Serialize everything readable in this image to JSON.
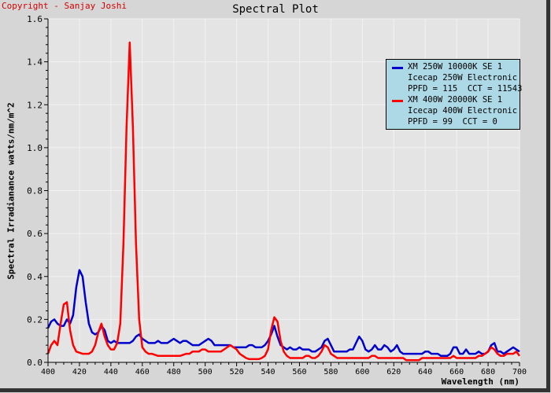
{
  "header": {
    "copyright": "Copyright - Sanjay Joshi"
  },
  "chart_data": {
    "type": "line",
    "title": "Spectral Plot",
    "xlabel": "Wavelength (nm)",
    "ylabel": "Spectral Irradianance watts/nm/m^2",
    "xlim": [
      400,
      700
    ],
    "ylim": [
      0,
      1.6
    ],
    "x_ticks": [
      "400",
      "420",
      "440",
      "460",
      "480",
      "500",
      "520",
      "540",
      "560",
      "580",
      "600",
      "620",
      "640",
      "660",
      "680",
      "700"
    ],
    "y_ticks": [
      "0.0",
      "0.2",
      "0.4",
      "0.6",
      "0.8",
      "1.0",
      "1.2",
      "1.4",
      "1.6"
    ],
    "grid": true,
    "legend_position": "top-right",
    "series": [
      {
        "name": "XM 250W 10000K SE 1",
        "legend_lines": [
          "XM 250W 10000K SE 1",
          "Icecap 250W Electronic",
          "PPFD = 115  CCT = 11543"
        ],
        "color": "#0000cc",
        "points": [
          [
            400,
            0.16
          ],
          [
            402,
            0.19
          ],
          [
            404,
            0.2
          ],
          [
            406,
            0.18
          ],
          [
            408,
            0.17
          ],
          [
            410,
            0.17
          ],
          [
            412,
            0.2
          ],
          [
            414,
            0.18
          ],
          [
            416,
            0.22
          ],
          [
            418,
            0.35
          ],
          [
            420,
            0.43
          ],
          [
            422,
            0.4
          ],
          [
            424,
            0.28
          ],
          [
            426,
            0.18
          ],
          [
            428,
            0.14
          ],
          [
            430,
            0.13
          ],
          [
            432,
            0.14
          ],
          [
            434,
            0.17
          ],
          [
            436,
            0.15
          ],
          [
            438,
            0.1
          ],
          [
            440,
            0.09
          ],
          [
            442,
            0.1
          ],
          [
            444,
            0.09
          ],
          [
            446,
            0.09
          ],
          [
            448,
            0.09
          ],
          [
            450,
            0.09
          ],
          [
            452,
            0.09
          ],
          [
            454,
            0.1
          ],
          [
            456,
            0.12
          ],
          [
            458,
            0.13
          ],
          [
            460,
            0.11
          ],
          [
            462,
            0.1
          ],
          [
            464,
            0.09
          ],
          [
            466,
            0.09
          ],
          [
            468,
            0.09
          ],
          [
            470,
            0.1
          ],
          [
            472,
            0.09
          ],
          [
            474,
            0.09
          ],
          [
            476,
            0.09
          ],
          [
            478,
            0.1
          ],
          [
            480,
            0.11
          ],
          [
            482,
            0.1
          ],
          [
            484,
            0.09
          ],
          [
            486,
            0.1
          ],
          [
            488,
            0.1
          ],
          [
            490,
            0.09
          ],
          [
            492,
            0.08
          ],
          [
            494,
            0.08
          ],
          [
            496,
            0.08
          ],
          [
            498,
            0.09
          ],
          [
            500,
            0.1
          ],
          [
            502,
            0.11
          ],
          [
            504,
            0.1
          ],
          [
            506,
            0.08
          ],
          [
            508,
            0.08
          ],
          [
            510,
            0.08
          ],
          [
            512,
            0.08
          ],
          [
            514,
            0.08
          ],
          [
            516,
            0.08
          ],
          [
            518,
            0.07
          ],
          [
            520,
            0.07
          ],
          [
            522,
            0.07
          ],
          [
            524,
            0.07
          ],
          [
            526,
            0.07
          ],
          [
            528,
            0.08
          ],
          [
            530,
            0.08
          ],
          [
            532,
            0.07
          ],
          [
            534,
            0.07
          ],
          [
            536,
            0.07
          ],
          [
            538,
            0.08
          ],
          [
            540,
            0.1
          ],
          [
            542,
            0.13
          ],
          [
            544,
            0.17
          ],
          [
            546,
            0.12
          ],
          [
            548,
            0.08
          ],
          [
            550,
            0.07
          ],
          [
            552,
            0.06
          ],
          [
            554,
            0.07
          ],
          [
            556,
            0.06
          ],
          [
            558,
            0.06
          ],
          [
            560,
            0.07
          ],
          [
            562,
            0.06
          ],
          [
            564,
            0.06
          ],
          [
            566,
            0.06
          ],
          [
            568,
            0.05
          ],
          [
            570,
            0.05
          ],
          [
            572,
            0.06
          ],
          [
            574,
            0.07
          ],
          [
            576,
            0.1
          ],
          [
            578,
            0.11
          ],
          [
            580,
            0.08
          ],
          [
            582,
            0.05
          ],
          [
            584,
            0.05
          ],
          [
            586,
            0.05
          ],
          [
            588,
            0.05
          ],
          [
            590,
            0.05
          ],
          [
            592,
            0.06
          ],
          [
            594,
            0.06
          ],
          [
            596,
            0.09
          ],
          [
            598,
            0.12
          ],
          [
            600,
            0.1
          ],
          [
            602,
            0.06
          ],
          [
            604,
            0.05
          ],
          [
            606,
            0.06
          ],
          [
            608,
            0.08
          ],
          [
            610,
            0.06
          ],
          [
            612,
            0.06
          ],
          [
            614,
            0.08
          ],
          [
            616,
            0.07
          ],
          [
            618,
            0.05
          ],
          [
            620,
            0.06
          ],
          [
            622,
            0.08
          ],
          [
            624,
            0.05
          ],
          [
            626,
            0.04
          ],
          [
            628,
            0.04
          ],
          [
            630,
            0.04
          ],
          [
            632,
            0.04
          ],
          [
            634,
            0.04
          ],
          [
            636,
            0.04
          ],
          [
            638,
            0.04
          ],
          [
            640,
            0.05
          ],
          [
            642,
            0.05
          ],
          [
            644,
            0.04
          ],
          [
            646,
            0.04
          ],
          [
            648,
            0.04
          ],
          [
            650,
            0.03
          ],
          [
            652,
            0.03
          ],
          [
            654,
            0.03
          ],
          [
            656,
            0.04
          ],
          [
            658,
            0.07
          ],
          [
            660,
            0.07
          ],
          [
            662,
            0.04
          ],
          [
            664,
            0.04
          ],
          [
            666,
            0.06
          ],
          [
            668,
            0.04
          ],
          [
            670,
            0.04
          ],
          [
            672,
            0.04
          ],
          [
            674,
            0.05
          ],
          [
            676,
            0.04
          ],
          [
            678,
            0.04
          ],
          [
            680,
            0.05
          ],
          [
            682,
            0.08
          ],
          [
            684,
            0.09
          ],
          [
            686,
            0.05
          ],
          [
            688,
            0.05
          ],
          [
            690,
            0.04
          ],
          [
            692,
            0.05
          ],
          [
            694,
            0.06
          ],
          [
            696,
            0.07
          ],
          [
            698,
            0.06
          ],
          [
            700,
            0.05
          ]
        ]
      },
      {
        "name": "XM 400W 20000K SE 1",
        "legend_lines": [
          "XM 400W 20000K SE 1",
          "Icecap 400W Electronic",
          "PPFD = 99  CCT = 0"
        ],
        "color": "#ff0000",
        "points": [
          [
            400,
            0.04
          ],
          [
            402,
            0.08
          ],
          [
            404,
            0.1
          ],
          [
            406,
            0.08
          ],
          [
            408,
            0.18
          ],
          [
            410,
            0.27
          ],
          [
            412,
            0.28
          ],
          [
            414,
            0.15
          ],
          [
            416,
            0.08
          ],
          [
            418,
            0.05
          ],
          [
            420,
            0.045
          ],
          [
            422,
            0.04
          ],
          [
            424,
            0.04
          ],
          [
            426,
            0.04
          ],
          [
            428,
            0.05
          ],
          [
            430,
            0.08
          ],
          [
            432,
            0.14
          ],
          [
            434,
            0.18
          ],
          [
            436,
            0.12
          ],
          [
            438,
            0.08
          ],
          [
            440,
            0.06
          ],
          [
            442,
            0.06
          ],
          [
            444,
            0.09
          ],
          [
            446,
            0.18
          ],
          [
            448,
            0.55
          ],
          [
            450,
            1.1
          ],
          [
            452,
            1.49
          ],
          [
            454,
            1.1
          ],
          [
            456,
            0.55
          ],
          [
            458,
            0.2
          ],
          [
            460,
            0.07
          ],
          [
            462,
            0.05
          ],
          [
            464,
            0.04
          ],
          [
            466,
            0.04
          ],
          [
            468,
            0.035
          ],
          [
            470,
            0.03
          ],
          [
            472,
            0.03
          ],
          [
            474,
            0.03
          ],
          [
            476,
            0.03
          ],
          [
            478,
            0.03
          ],
          [
            480,
            0.03
          ],
          [
            482,
            0.03
          ],
          [
            484,
            0.03
          ],
          [
            486,
            0.035
          ],
          [
            488,
            0.04
          ],
          [
            490,
            0.04
          ],
          [
            492,
            0.05
          ],
          [
            494,
            0.05
          ],
          [
            496,
            0.05
          ],
          [
            498,
            0.06
          ],
          [
            500,
            0.06
          ],
          [
            502,
            0.05
          ],
          [
            504,
            0.05
          ],
          [
            506,
            0.05
          ],
          [
            508,
            0.05
          ],
          [
            510,
            0.05
          ],
          [
            512,
            0.06
          ],
          [
            514,
            0.07
          ],
          [
            516,
            0.08
          ],
          [
            518,
            0.07
          ],
          [
            520,
            0.06
          ],
          [
            522,
            0.04
          ],
          [
            524,
            0.03
          ],
          [
            526,
            0.02
          ],
          [
            528,
            0.015
          ],
          [
            530,
            0.015
          ],
          [
            532,
            0.015
          ],
          [
            534,
            0.015
          ],
          [
            536,
            0.02
          ],
          [
            538,
            0.03
          ],
          [
            540,
            0.06
          ],
          [
            542,
            0.15
          ],
          [
            544,
            0.21
          ],
          [
            546,
            0.19
          ],
          [
            548,
            0.1
          ],
          [
            550,
            0.05
          ],
          [
            552,
            0.03
          ],
          [
            554,
            0.02
          ],
          [
            556,
            0.02
          ],
          [
            558,
            0.02
          ],
          [
            560,
            0.02
          ],
          [
            562,
            0.02
          ],
          [
            564,
            0.03
          ],
          [
            566,
            0.03
          ],
          [
            568,
            0.02
          ],
          [
            570,
            0.02
          ],
          [
            572,
            0.03
          ],
          [
            574,
            0.05
          ],
          [
            576,
            0.08
          ],
          [
            578,
            0.07
          ],
          [
            580,
            0.04
          ],
          [
            582,
            0.03
          ],
          [
            584,
            0.02
          ],
          [
            586,
            0.02
          ],
          [
            588,
            0.02
          ],
          [
            590,
            0.02
          ],
          [
            592,
            0.02
          ],
          [
            594,
            0.02
          ],
          [
            596,
            0.02
          ],
          [
            598,
            0.02
          ],
          [
            600,
            0.02
          ],
          [
            602,
            0.02
          ],
          [
            604,
            0.02
          ],
          [
            606,
            0.03
          ],
          [
            608,
            0.03
          ],
          [
            610,
            0.02
          ],
          [
            612,
            0.02
          ],
          [
            614,
            0.02
          ],
          [
            616,
            0.02
          ],
          [
            618,
            0.02
          ],
          [
            620,
            0.02
          ],
          [
            622,
            0.02
          ],
          [
            624,
            0.02
          ],
          [
            626,
            0.02
          ],
          [
            628,
            0.01
          ],
          [
            630,
            0.01
          ],
          [
            632,
            0.01
          ],
          [
            634,
            0.01
          ],
          [
            636,
            0.01
          ],
          [
            638,
            0.02
          ],
          [
            640,
            0.02
          ],
          [
            642,
            0.02
          ],
          [
            644,
            0.02
          ],
          [
            646,
            0.02
          ],
          [
            648,
            0.02
          ],
          [
            650,
            0.02
          ],
          [
            652,
            0.02
          ],
          [
            654,
            0.02
          ],
          [
            656,
            0.02
          ],
          [
            658,
            0.03
          ],
          [
            660,
            0.02
          ],
          [
            662,
            0.02
          ],
          [
            664,
            0.02
          ],
          [
            666,
            0.02
          ],
          [
            668,
            0.02
          ],
          [
            670,
            0.02
          ],
          [
            672,
            0.02
          ],
          [
            674,
            0.03
          ],
          [
            676,
            0.03
          ],
          [
            678,
            0.04
          ],
          [
            680,
            0.05
          ],
          [
            682,
            0.07
          ],
          [
            684,
            0.06
          ],
          [
            686,
            0.04
          ],
          [
            688,
            0.03
          ],
          [
            690,
            0.03
          ],
          [
            692,
            0.04
          ],
          [
            694,
            0.04
          ],
          [
            696,
            0.04
          ],
          [
            698,
            0.05
          ],
          [
            700,
            0.03
          ]
        ]
      }
    ]
  }
}
